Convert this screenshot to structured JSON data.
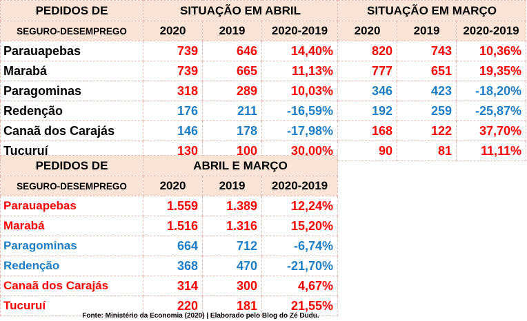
{
  "table1": {
    "header": {
      "label_line1": "PEDIDOS DE",
      "label_line2": "SEGURO-DESEMPREGO",
      "group_april": "SITUAÇÃO EM ABRIL",
      "group_march": "SITUAÇÃO EM MARÇO",
      "col_2020": "2020",
      "col_2019": "2019",
      "col_diff": "2020-2019"
    },
    "rows": [
      {
        "city": "Parauapebas",
        "abr_2020": "739",
        "abr_2019": "646",
        "abr_diff": "14,40%",
        "abr_color": "#ff0000",
        "mar_2020": "820",
        "mar_2019": "743",
        "mar_diff": "10,36%",
        "mar_color": "#ff0000"
      },
      {
        "city": "Marabá",
        "abr_2020": "739",
        "abr_2019": "665",
        "abr_diff": "11,13%",
        "abr_color": "#ff0000",
        "mar_2020": "777",
        "mar_2019": "651",
        "mar_diff": "19,35%",
        "mar_color": "#ff0000"
      },
      {
        "city": "Paragominas",
        "abr_2020": "318",
        "abr_2019": "289",
        "abr_diff": "10,03%",
        "abr_color": "#ff0000",
        "mar_2020": "346",
        "mar_2019": "423",
        "mar_diff": "-18,20%",
        "mar_color": "#1e7dc7"
      },
      {
        "city": "Redenção",
        "abr_2020": "176",
        "abr_2019": "211",
        "abr_diff": "-16,59%",
        "abr_color": "#1e7dc7",
        "mar_2020": "192",
        "mar_2019": "259",
        "mar_diff": "-25,87%",
        "mar_color": "#1e7dc7"
      },
      {
        "city": "Canaã dos Carajás",
        "abr_2020": "146",
        "abr_2019": "178",
        "abr_diff": "-17,98%",
        "abr_color": "#1e7dc7",
        "mar_2020": "168",
        "mar_2019": "122",
        "mar_diff": "37,70%",
        "mar_color": "#ff0000"
      },
      {
        "city": "Tucuruí",
        "abr_2020": "130",
        "abr_2019": "100",
        "abr_diff": "30,00%",
        "abr_color": "#ff0000",
        "mar_2020": "90",
        "mar_2019": "81",
        "mar_diff": "11,11%",
        "mar_color": "#ff0000"
      }
    ]
  },
  "table2": {
    "header": {
      "label_line1": "PEDIDOS DE",
      "label_line2": "SEGURO-DESEMPREGO",
      "group": "ABRIL E MARÇO",
      "col_2020": "2020",
      "col_2019": "2019",
      "col_diff": "2020-2019"
    },
    "rows": [
      {
        "city": "Parauapebas",
        "v2020": "1.559",
        "v2019": "1.389",
        "diff": "12,24%",
        "color": "#ff0000"
      },
      {
        "city": "Marabá",
        "v2020": "1.516",
        "v2019": "1.316",
        "diff": "15,20%",
        "color": "#ff0000"
      },
      {
        "city": "Paragominas",
        "v2020": "664",
        "v2019": "712",
        "diff": "-6,74%",
        "color": "#1e7dc7"
      },
      {
        "city": "Redenção",
        "v2020": "368",
        "v2019": "470",
        "diff": "-21,70%",
        "color": "#1e7dc7"
      },
      {
        "city": "Canaã dos Carajás",
        "v2020": "314",
        "v2019": "300",
        "diff": "4,67%",
        "color": "#ff0000"
      },
      {
        "city": "Tucuruí",
        "v2020": "220",
        "v2019": "181",
        "diff": "21,55%",
        "color": "#ff0000"
      }
    ]
  },
  "source": "Fonte: Ministério da Economia (2020) | Elaborado pelo Blog do Zé Dudu."
}
